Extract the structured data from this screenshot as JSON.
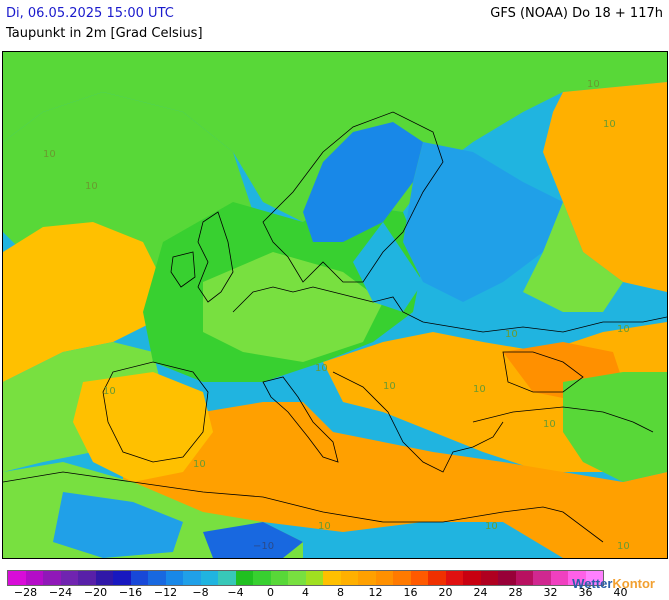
{
  "header": {
    "datetime": "Di, 06.05.2025 15:00 UTC",
    "variable": "Taupunkt in 2m [Grad Celsius]",
    "model_run": "GFS (NOAA) Do 18 + 117h"
  },
  "legend": {
    "colors": [
      "#d80cd8",
      "#b40cc8",
      "#9018b8",
      "#7024b0",
      "#5820a8",
      "#3018a8",
      "#1818c0",
      "#1848d8",
      "#1868e0",
      "#1888e8",
      "#20a0e8",
      "#20b4e0",
      "#38c8b8",
      "#20c020",
      "#38d030",
      "#58d838",
      "#78e040",
      "#a0e020",
      "#ffc000",
      "#ffb000",
      "#ffa000",
      "#ff9000",
      "#ff7a00",
      "#ff5a00",
      "#f03000",
      "#e01010",
      "#c80010",
      "#b00020",
      "#980038",
      "#b81060",
      "#d02890",
      "#f040c0",
      "#ff60e8",
      "#ff80ff"
    ],
    "tick_labels": [
      "−28",
      "−24",
      "−20",
      "−16",
      "−12",
      "−8",
      "−4",
      "0",
      "4",
      "8",
      "12",
      "16",
      "20",
      "24",
      "28",
      "32",
      "36",
      "40"
    ]
  },
  "contour_labels": [
    "10",
    "10",
    "10",
    "10",
    "10",
    "10",
    "10",
    "10",
    "10",
    "10",
    "10",
    "10",
    "10",
    "10",
    "10",
    "−10"
  ],
  "brand": {
    "name_main": "Wetter",
    "name_accent": "Kontor"
  }
}
